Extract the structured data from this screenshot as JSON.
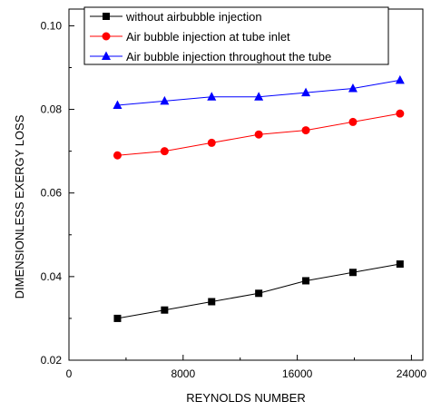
{
  "chart_data": {
    "type": "line",
    "title": "",
    "xlabel": "REYNOLDS NUMBER",
    "ylabel": "DIMENSIONLESS EXERGY LOSS",
    "xlim": [
      0,
      24800
    ],
    "ylim": [
      0.02,
      0.104
    ],
    "x_ticks": [
      0,
      8000,
      16000,
      24000
    ],
    "x_tick_labels": [
      "0",
      "8000",
      "16000",
      "24000"
    ],
    "y_ticks": [
      0.02,
      0.04,
      0.06,
      0.08,
      0.1
    ],
    "y_tick_labels": [
      "0.02",
      "0.04",
      "0.06",
      "0.08",
      "0.10"
    ],
    "grid": false,
    "legend_position": "top",
    "x": [
      3400,
      6700,
      10000,
      13300,
      16600,
      19900,
      23200
    ],
    "series": [
      {
        "name": "without airbubble injection",
        "color": "#000000",
        "marker": "square",
        "values": [
          0.03,
          0.032,
          0.034,
          0.036,
          0.039,
          0.041,
          0.043
        ]
      },
      {
        "name": "Air bubble injection at tube inlet",
        "color": "#ff0000",
        "marker": "circle",
        "values": [
          0.069,
          0.07,
          0.072,
          0.074,
          0.075,
          0.077,
          0.079
        ]
      },
      {
        "name": "Air bubble injection throughout the tube",
        "color": "#0000ff",
        "marker": "triangle",
        "values": [
          0.081,
          0.082,
          0.083,
          0.083,
          0.084,
          0.085,
          0.087
        ]
      }
    ]
  }
}
